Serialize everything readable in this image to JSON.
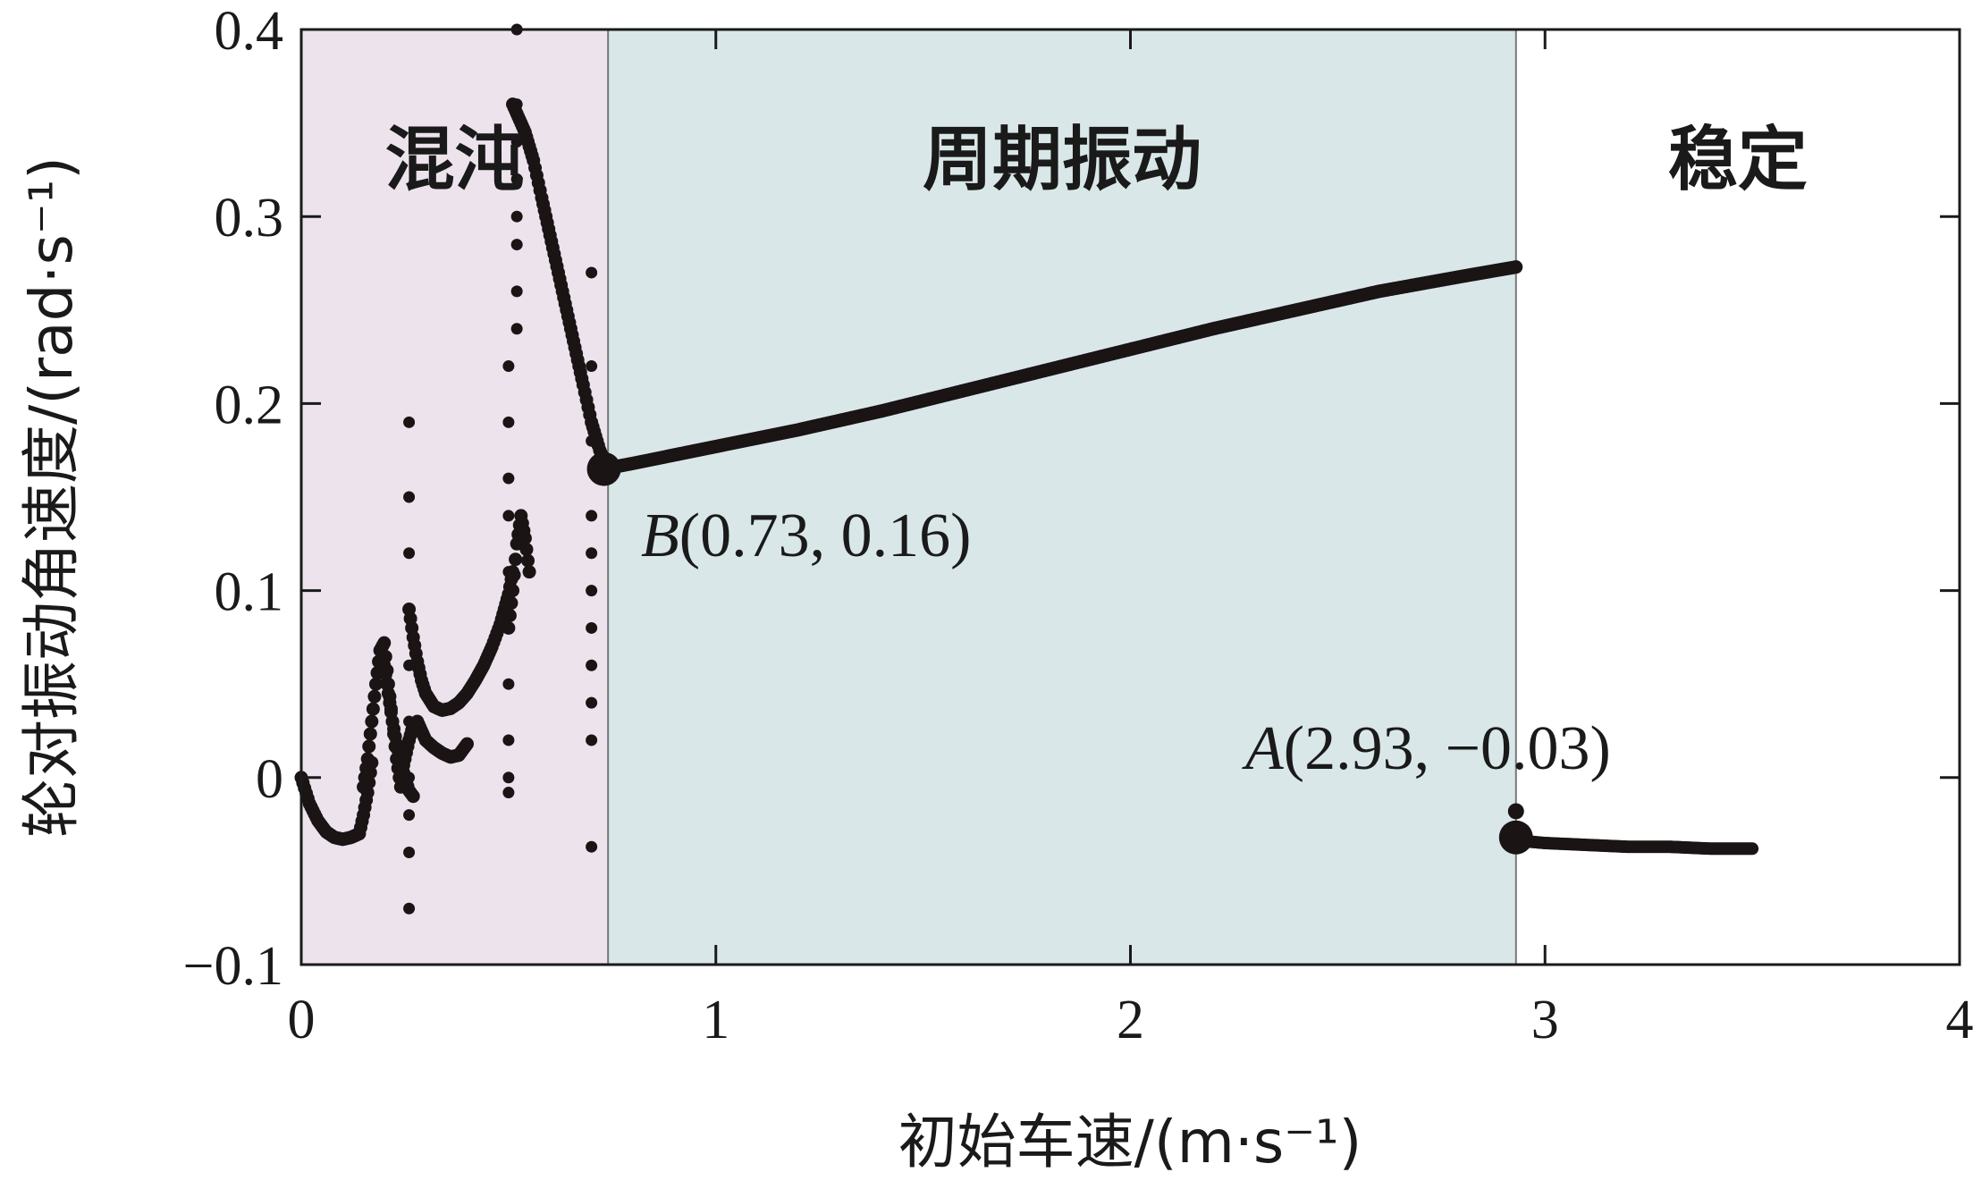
{
  "chart_data": {
    "type": "scatter",
    "title": "",
    "xlabel": "初始车速/(m·s⁻¹)",
    "ylabel": "轮对振动角速度/(rad·s⁻¹)",
    "xlim": [
      0,
      4
    ],
    "ylim": [
      -0.1,
      0.4
    ],
    "x_ticks": [
      0,
      1,
      2,
      3,
      4
    ],
    "y_ticks": [
      -0.1,
      0,
      0.1,
      0.2,
      0.3,
      0.4
    ],
    "x_tick_labels": [
      "0",
      "1",
      "2",
      "3",
      "4"
    ],
    "y_tick_labels": [
      "−0.1",
      "0",
      "0.1",
      "0.2",
      "0.3",
      "0.4"
    ],
    "grid": false,
    "regions": [
      {
        "label": "混沌",
        "x_start": 0,
        "x_end": 0.74,
        "color": "#ede3ec"
      },
      {
        "label": "周期振动",
        "x_start": 0.74,
        "x_end": 2.93,
        "color": "#d9e7e8"
      },
      {
        "label": "稳定",
        "x_start": 2.93,
        "x_end": 4,
        "color": "#ffffff"
      }
    ],
    "annotations": [
      {
        "label_italic": "B",
        "label_rest": "(0.73, 0.16)",
        "x": 0.73,
        "y": 0.165
      },
      {
        "label_italic": "A",
        "label_rest": "(2.93, −0.03)",
        "x": 2.93,
        "y": -0.032
      }
    ],
    "series": [
      {
        "marker_color": "#1a1414",
        "chaos_curves": [
          {
            "x": [
              0.0,
              0.02,
              0.04,
              0.06,
              0.08,
              0.1,
              0.12,
              0.14,
              0.15,
              0.16,
              0.17
            ],
            "y": [
              0.0,
              -0.014,
              -0.023,
              -0.029,
              -0.032,
              -0.033,
              -0.032,
              -0.03,
              -0.02,
              -0.008,
              0.008
            ]
          },
          {
            "x": [
              0.15,
              0.16,
              0.17,
              0.18,
              0.19,
              0.2,
              0.21,
              0.22,
              0.23,
              0.24
            ],
            "y": [
              -0.005,
              0.01,
              0.03,
              0.05,
              0.068,
              0.072,
              0.05,
              0.03,
              0.01,
              -0.005
            ]
          },
          {
            "x": [
              0.2,
              0.21,
              0.22,
              0.23,
              0.24,
              0.25,
              0.26,
              0.27
            ],
            "y": [
              0.06,
              0.045,
              0.03,
              0.018,
              0.008,
              0.0,
              -0.007,
              -0.01
            ]
          },
          {
            "x": [
              0.24,
              0.25,
              0.26,
              0.27,
              0.28,
              0.29,
              0.3,
              0.32,
              0.34,
              0.36,
              0.38,
              0.4
            ],
            "y": [
              0.0,
              0.01,
              0.02,
              0.028,
              0.03,
              0.025,
              0.02,
              0.016,
              0.013,
              0.011,
              0.012,
              0.018
            ]
          },
          {
            "x": [
              0.26,
              0.27,
              0.28,
              0.29,
              0.3,
              0.32,
              0.34,
              0.36,
              0.38,
              0.4,
              0.42,
              0.44,
              0.46,
              0.48,
              0.5,
              0.51
            ],
            "y": [
              0.09,
              0.075,
              0.062,
              0.052,
              0.045,
              0.038,
              0.036,
              0.037,
              0.04,
              0.045,
              0.052,
              0.06,
              0.07,
              0.082,
              0.098,
              0.11
            ]
          },
          {
            "x": [
              0.5,
              0.51,
              0.52,
              0.53,
              0.54,
              0.55
            ],
            "y": [
              0.08,
              0.1,
              0.125,
              0.14,
              0.128,
              0.11
            ]
          },
          {
            "x": [
              0.51,
              0.52,
              0.53,
              0.54,
              0.56,
              0.58,
              0.6,
              0.62,
              0.64,
              0.66,
              0.68,
              0.7,
              0.72,
              0.74
            ],
            "y": [
              0.36,
              0.355,
              0.35,
              0.345,
              0.33,
              0.31,
              0.29,
              0.27,
              0.25,
              0.23,
              0.21,
              0.19,
              0.175,
              0.165
            ]
          }
        ],
        "chaos_columns": [
          {
            "x": 0.26,
            "y": [
              -0.07,
              -0.04,
              -0.02,
              0.0,
              0.03,
              0.06,
              0.09,
              0.12,
              0.15,
              0.19
            ]
          },
          {
            "x": 0.5,
            "y": [
              -0.008,
              0.0,
              0.02,
              0.05,
              0.08,
              0.11,
              0.14,
              0.16,
              0.19,
              0.22
            ]
          },
          {
            "x": 0.52,
            "y": [
              0.24,
              0.26,
              0.285,
              0.3,
              0.32,
              0.34,
              0.36,
              0.4
            ]
          },
          {
            "x": 0.7,
            "y": [
              -0.037,
              0.02,
              0.04,
              0.06,
              0.08,
              0.1,
              0.12,
              0.14,
              0.18,
              0.22,
              0.27
            ]
          }
        ],
        "periodic": {
          "x": [
            0.73,
            0.8,
            1.0,
            1.2,
            1.4,
            1.6,
            1.8,
            2.0,
            2.2,
            2.4,
            2.6,
            2.8,
            2.93
          ],
          "y": [
            0.165,
            0.168,
            0.177,
            0.186,
            0.196,
            0.207,
            0.218,
            0.229,
            0.24,
            0.25,
            0.26,
            0.268,
            0.273
          ]
        },
        "stable": {
          "x": [
            2.93,
            2.95,
            3.0,
            3.1,
            3.2,
            3.3,
            3.4,
            3.5
          ],
          "y": [
            -0.032,
            -0.034,
            -0.035,
            -0.036,
            -0.037,
            -0.037,
            -0.038,
            -0.038
          ]
        },
        "stable_outlier": {
          "x": 2.93,
          "y": -0.018
        }
      }
    ]
  }
}
